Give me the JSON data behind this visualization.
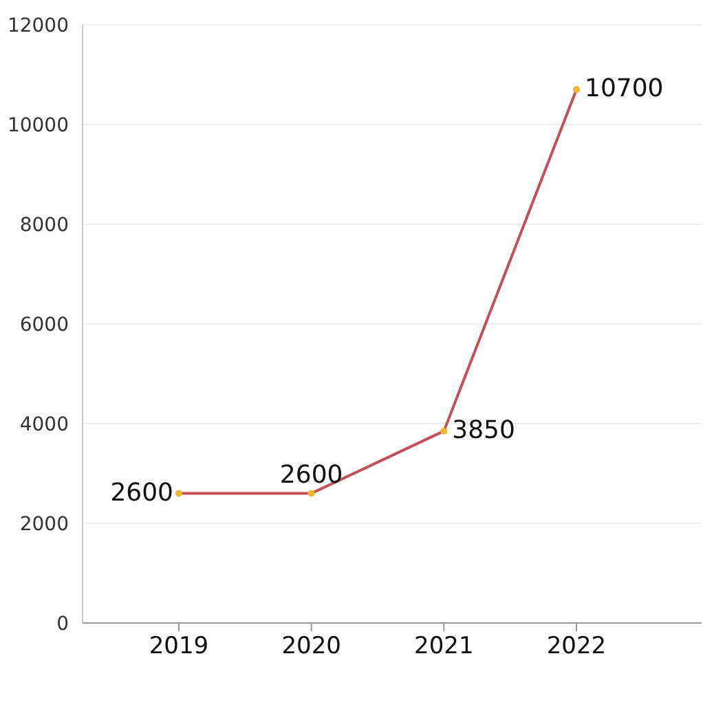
{
  "chart_data": {
    "type": "line",
    "categories": [
      "2019",
      "2020",
      "2021",
      "2022"
    ],
    "series": [
      {
        "color": "#c4505a",
        "values": [
          2600,
          2600,
          3850,
          10700
        ]
      }
    ],
    "ylim": [
      0,
      12000
    ],
    "yticks": [
      0,
      2000,
      4000,
      6000,
      8000,
      10000,
      12000
    ],
    "grid": "y",
    "marker": "circle",
    "data_labels": true
  }
}
